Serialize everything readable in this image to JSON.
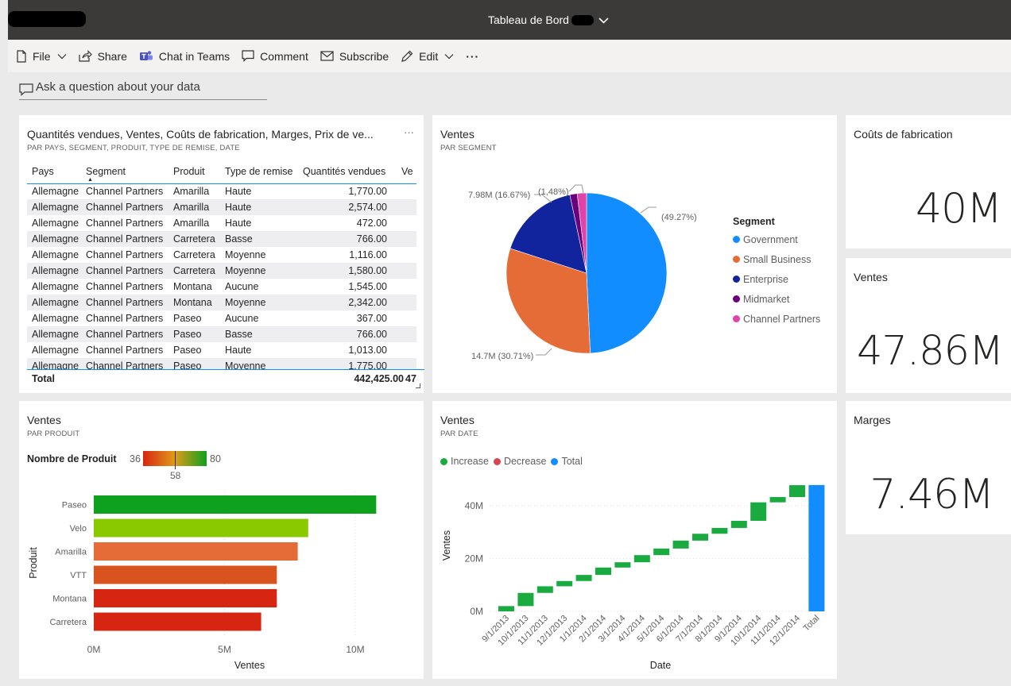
{
  "app": {
    "title": "Tableau de Bord",
    "commands": [
      {
        "label": "File",
        "icon": "file-icon",
        "dropdown": true
      },
      {
        "label": "Share",
        "icon": "share-icon",
        "dropdown": false
      },
      {
        "label": "Chat in Teams",
        "icon": "teams-icon",
        "dropdown": false
      },
      {
        "label": "Comment",
        "icon": "comment-icon",
        "dropdown": false
      },
      {
        "label": "Subscribe",
        "icon": "mail-icon",
        "dropdown": false
      },
      {
        "label": "Edit",
        "icon": "pencil-icon",
        "dropdown": true
      }
    ],
    "more": "···",
    "qna_placeholder": "Ask a question about your data"
  },
  "table_tile": {
    "title": "Quantités vendues, Ventes, Coûts de fabrication, Marges, Prix de ve...",
    "subtitle": "PAR PAYS, SEGMENT, PRODUIT, TYPE DE REMISE, DATE",
    "more": "···",
    "columns": [
      "Pays",
      "Segment",
      "Produit",
      "Type de remise",
      "Quantités vendues",
      "Ve"
    ],
    "rows": [
      [
        "Allemagne",
        "Channel Partners",
        "Amarilla",
        "Haute",
        "1,770.00"
      ],
      [
        "Allemagne",
        "Channel Partners",
        "Amarilla",
        "Haute",
        "2,574.00"
      ],
      [
        "Allemagne",
        "Channel Partners",
        "Amarilla",
        "Haute",
        "472.00"
      ],
      [
        "Allemagne",
        "Channel Partners",
        "Carretera",
        "Basse",
        "766.00"
      ],
      [
        "Allemagne",
        "Channel Partners",
        "Carretera",
        "Moyenne",
        "1,116.00"
      ],
      [
        "Allemagne",
        "Channel Partners",
        "Carretera",
        "Moyenne",
        "1,580.00"
      ],
      [
        "Allemagne",
        "Channel Partners",
        "Montana",
        "Aucune",
        "1,545.00"
      ],
      [
        "Allemagne",
        "Channel Partners",
        "Montana",
        "Moyenne",
        "2,342.00"
      ],
      [
        "Allemagne",
        "Channel Partners",
        "Paseo",
        "Aucune",
        "367.00"
      ],
      [
        "Allemagne",
        "Channel Partners",
        "Paseo",
        "Basse",
        "766.00"
      ],
      [
        "Allemagne",
        "Channel Partners",
        "Paseo",
        "Haute",
        "1,013.00"
      ],
      [
        "Allemagne",
        "Channel Partners",
        "Paseo",
        "Moyenne",
        "1,775.00"
      ]
    ],
    "total_label": "Total",
    "total_qty": "442,425.00",
    "total_ventes": "47"
  },
  "pie_tile": {
    "title": "Ventes",
    "subtitle": "PAR SEGMENT",
    "legend_title": "Segment",
    "labels": {
      "government": "(49.27%)",
      "small_business": "14.7M (30.71%)",
      "enterprise": "7.98M (16.67%)",
      "midmarket": "(1,48%)"
    }
  },
  "kpis": {
    "couts_title": "Coûts de fabrication",
    "couts_value": "40M",
    "ventes_title": "Ventes",
    "ventes_value": "47.86M",
    "marges_title": "Marges",
    "marges_value": "7.46M"
  },
  "bar_tile": {
    "title": "Ventes",
    "subtitle": "PAR PRODUIT",
    "gradient_label": "Nombre de Produit",
    "gradient_min": "36",
    "gradient_max": "80",
    "gradient_mid": "58",
    "ylabel": "Produit",
    "xlabel": "Ventes",
    "x_ticks": [
      "0M",
      "5M",
      "10M"
    ]
  },
  "waterfall_tile": {
    "title": "Ventes",
    "subtitle": "PAR DATE",
    "legend": [
      "Increase",
      "Decrease",
      "Total"
    ],
    "ylabel": "Ventes",
    "xlabel": "Date",
    "y_ticks": [
      "0M",
      "20M",
      "40M"
    ]
  },
  "chart_data": [
    {
      "type": "pie",
      "title": "Ventes",
      "categories": [
        "Government",
        "Small Business",
        "Enterprise",
        "Midmarket",
        "Channel Partners"
      ],
      "values": [
        49.27,
        30.71,
        16.67,
        1.48,
        1.87
      ],
      "colors": [
        "#118dff",
        "#e66c37",
        "#12239e",
        "#6b007b",
        "#e044a7"
      ],
      "legend": "right"
    },
    {
      "type": "bar",
      "orientation": "horizontal",
      "title": "Ventes",
      "categories": [
        "Paseo",
        "Velo",
        "Amarilla",
        "VTT",
        "Montana",
        "Carretera"
      ],
      "values": [
        10.8,
        8.2,
        7.8,
        7.0,
        7.0,
        6.4
      ],
      "nombre_de_produit": [
        80,
        66,
        45,
        42,
        40,
        36
      ],
      "colors": [
        "#0da11e",
        "#8ac800",
        "#e66c37",
        "#d9531e",
        "#d62612",
        "#d62612"
      ],
      "xlabel": "Ventes",
      "ylabel": "Produit",
      "xlim": [
        0,
        11.5
      ]
    },
    {
      "type": "bar",
      "subtype": "waterfall",
      "title": "Ventes",
      "categories": [
        "9/1/2013",
        "10/1/2013",
        "11/1/2013",
        "12/1/2013",
        "1/1/2014",
        "2/1/2014",
        "3/1/2014",
        "4/1/2014",
        "5/1/2014",
        "6/1/2014",
        "7/1/2014",
        "8/1/2014",
        "9/1/2014",
        "10/1/2014",
        "11/1/2014",
        "12/1/2014",
        "Total"
      ],
      "values": [
        2.0,
        5.0,
        2.5,
        2.0,
        2.3,
        2.8,
        2.0,
        2.7,
        2.5,
        3.0,
        2.6,
        2.2,
        2.7,
        7.0,
        2.0,
        4.5,
        47.86
      ],
      "series": [
        {
          "name": "Increase",
          "color": "#1aab40"
        },
        {
          "name": "Decrease",
          "color": "#d64554"
        },
        {
          "name": "Total",
          "color": "#118dff"
        }
      ],
      "xlabel": "Date",
      "ylabel": "Ventes",
      "ylim": [
        0,
        50
      ],
      "legend": "top-left"
    }
  ]
}
